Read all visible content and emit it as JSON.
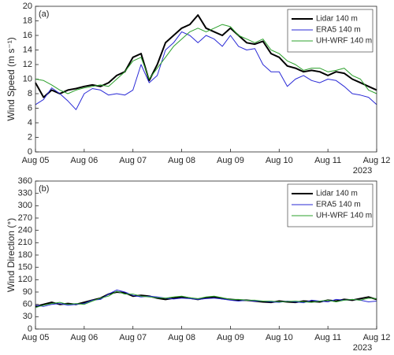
{
  "chart_data": [
    {
      "type": "line",
      "panel_label": "(a)",
      "y_label": "Wind Speed (m s⁻¹)",
      "x_note": "2023",
      "legend": "upper right",
      "grid": false,
      "x": [
        0,
        0.1667,
        0.3333,
        0.5,
        0.6667,
        0.8333,
        1,
        1.1667,
        1.3333,
        1.5,
        1.6667,
        1.8333,
        2,
        2.1667,
        2.3333,
        2.5,
        2.6667,
        2.8333,
        3,
        3.1667,
        3.3333,
        3.5,
        3.6667,
        3.8333,
        4,
        4.1667,
        4.3333,
        4.5,
        4.6667,
        4.8333,
        5,
        5.1667,
        5.3333,
        5.5,
        5.6667,
        5.8333,
        6,
        6.1667,
        6.3333,
        6.5,
        6.6667,
        6.8333,
        7
      ],
      "xlim": [
        0,
        7
      ],
      "xticks": [
        {
          "value": 0,
          "label": "Aug 05"
        },
        {
          "value": 1,
          "label": "Aug 06"
        },
        {
          "value": 2,
          "label": "Aug 07"
        },
        {
          "value": 3,
          "label": "Aug 08"
        },
        {
          "value": 4,
          "label": "Aug 09"
        },
        {
          "value": 5,
          "label": "Aug 10"
        },
        {
          "value": 6,
          "label": "Aug 11"
        },
        {
          "value": 7,
          "label": "Aug 12"
        }
      ],
      "ylim": [
        0,
        20
      ],
      "yticks": [
        0,
        2,
        4,
        6,
        8,
        10,
        12,
        14,
        16,
        18,
        20
      ],
      "series": [
        {
          "name": "Lidar 140 m",
          "color": "#000000",
          "width": 2,
          "values": [
            9.5,
            7.5,
            8.5,
            8.0,
            8.5,
            8.7,
            9.0,
            9.2,
            9.0,
            9.5,
            10.5,
            11.0,
            13.0,
            13.5,
            9.8,
            12.0,
            15.0,
            16.0,
            17.0,
            17.5,
            18.8,
            17.0,
            16.5,
            16.0,
            17.0,
            16.0,
            15.0,
            14.8,
            15.2,
            13.5,
            13.0,
            11.8,
            11.5,
            11.0,
            11.2,
            11.0,
            10.5,
            11.0,
            10.8,
            10.0,
            9.5,
            9.0,
            8.5
          ]
        },
        {
          "name": "ERA5 140 m",
          "color": "#2929d6",
          "width": 1,
          "values": [
            6.5,
            7.2,
            8.8,
            8.0,
            7.0,
            5.8,
            8.0,
            8.7,
            8.5,
            7.8,
            8.0,
            7.8,
            8.5,
            12.0,
            9.5,
            10.5,
            14.0,
            15.0,
            16.5,
            16.0,
            15.0,
            16.0,
            15.5,
            14.5,
            16.0,
            14.5,
            14.0,
            14.2,
            12.0,
            11.0,
            11.0,
            9.0,
            10.0,
            10.5,
            9.8,
            9.5,
            10.0,
            9.8,
            9.0,
            8.0,
            7.8,
            7.5,
            6.5
          ]
        },
        {
          "name": "UH-WRF 140 m",
          "color": "#2ca02c",
          "width": 1,
          "values": [
            10.0,
            9.8,
            9.2,
            8.5,
            8.0,
            8.5,
            8.8,
            9.0,
            9.2,
            9.0,
            10.0,
            11.0,
            12.5,
            13.0,
            10.0,
            11.5,
            13.0,
            14.5,
            15.5,
            16.5,
            17.0,
            16.5,
            17.0,
            17.5,
            17.2,
            16.0,
            15.5,
            15.0,
            15.5,
            14.0,
            13.5,
            12.5,
            12.0,
            11.2,
            11.5,
            11.5,
            11.0,
            11.2,
            11.5,
            10.5,
            10.0,
            8.5,
            8.0
          ]
        }
      ]
    },
    {
      "type": "line",
      "panel_label": "(b)",
      "y_label": "Wind Direction (°)",
      "x_note": "2023",
      "legend": "upper right",
      "grid": false,
      "x": [
        0,
        0.1667,
        0.3333,
        0.5,
        0.6667,
        0.8333,
        1,
        1.1667,
        1.3333,
        1.5,
        1.6667,
        1.8333,
        2,
        2.1667,
        2.3333,
        2.5,
        2.6667,
        2.8333,
        3,
        3.1667,
        3.3333,
        3.5,
        3.6667,
        3.8333,
        4,
        4.1667,
        4.3333,
        4.5,
        4.6667,
        4.8333,
        5,
        5.1667,
        5.3333,
        5.5,
        5.6667,
        5.8333,
        6,
        6.1667,
        6.3333,
        6.5,
        6.6667,
        6.8333,
        7
      ],
      "xlim": [
        0,
        7
      ],
      "xticks": [
        {
          "value": 0,
          "label": "Aug 05"
        },
        {
          "value": 1,
          "label": "Aug 06"
        },
        {
          "value": 2,
          "label": "Aug 07"
        },
        {
          "value": 3,
          "label": "Aug 08"
        },
        {
          "value": 4,
          "label": "Aug 09"
        },
        {
          "value": 5,
          "label": "Aug 10"
        },
        {
          "value": 6,
          "label": "Aug 11"
        },
        {
          "value": 7,
          "label": "Aug 12"
        }
      ],
      "ylim": [
        0,
        360
      ],
      "yticks": [
        0,
        30,
        60,
        90,
        120,
        150,
        180,
        210,
        240,
        270,
        300,
        330,
        360
      ],
      "series": [
        {
          "name": "Lidar 140 m",
          "color": "#000000",
          "width": 2,
          "values": [
            55,
            60,
            65,
            60,
            62,
            60,
            65,
            70,
            75,
            85,
            90,
            88,
            80,
            82,
            80,
            75,
            72,
            75,
            78,
            75,
            72,
            76,
            78,
            74,
            72,
            70,
            70,
            68,
            66,
            65,
            68,
            66,
            65,
            68,
            67,
            66,
            70,
            68,
            72,
            70,
            74,
            78,
            72
          ]
        },
        {
          "name": "ERA5 140 m",
          "color": "#2929d6",
          "width": 1,
          "values": [
            58,
            55,
            60,
            62,
            58,
            60,
            62,
            70,
            72,
            85,
            95,
            90,
            82,
            78,
            80,
            78,
            75,
            73,
            75,
            74,
            72,
            74,
            75,
            73,
            70,
            68,
            70,
            68,
            68,
            66,
            65,
            68,
            66,
            64,
            70,
            68,
            66,
            72,
            70,
            72,
            70,
            66,
            68
          ]
        },
        {
          "name": "UH-WRF 140 m",
          "color": "#2ca02c",
          "width": 1,
          "values": [
            52,
            58,
            62,
            65,
            60,
            62,
            60,
            68,
            75,
            80,
            92,
            85,
            85,
            80,
            78,
            76,
            75,
            78,
            80,
            76,
            74,
            78,
            80,
            76,
            72,
            72,
            70,
            70,
            68,
            68,
            66,
            67,
            68,
            66,
            65,
            68,
            70,
            66,
            70,
            72,
            70,
            75,
            74
          ]
        }
      ]
    }
  ]
}
